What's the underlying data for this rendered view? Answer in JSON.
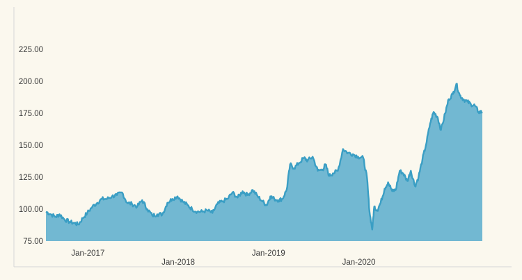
{
  "chart_data": {
    "type": "area",
    "title": "",
    "xlabel": "",
    "ylabel": "",
    "x_range": [
      "2016-08-01",
      "2021-05-31"
    ],
    "ylim": [
      75,
      250
    ],
    "y_ticks": [
      "75.00",
      "100.00",
      "125.00",
      "150.00",
      "175.00",
      "200.00",
      "225.00"
    ],
    "x_ticks": [
      {
        "date": "2017-01-01",
        "label": "Jan-2017"
      },
      {
        "date": "2018-01-01",
        "label": "Jan-2018"
      },
      {
        "date": "2019-01-01",
        "label": "Jan-2019"
      },
      {
        "date": "2020-01-01",
        "label": "Jan-2020"
      }
    ],
    "grid": false,
    "colors": {
      "fill": "#72b8d2",
      "line": "#3a9ec4",
      "axis": "#d6d6d6",
      "background": "#fbf8ee"
    },
    "series": [
      {
        "x": [
          "2016-08-01",
          "2016-08-20",
          "2016-09-10",
          "2016-09-25",
          "2016-10-15",
          "2016-11-05",
          "2016-11-25",
          "2016-12-10",
          "2016-12-28",
          "2017-01-15",
          "2017-02-05",
          "2017-02-25",
          "2017-03-15",
          "2017-04-05",
          "2017-04-25",
          "2017-05-15",
          "2017-06-05",
          "2017-06-25",
          "2017-07-15",
          "2017-08-05",
          "2017-08-25",
          "2017-09-15",
          "2017-10-05",
          "2017-10-25",
          "2017-11-15",
          "2017-12-05",
          "2017-12-25",
          "2018-01-15",
          "2018-02-05",
          "2018-02-25",
          "2018-03-15",
          "2018-04-05",
          "2018-04-25",
          "2018-05-15",
          "2018-06-05",
          "2018-06-25",
          "2018-07-15",
          "2018-08-05",
          "2018-08-25",
          "2018-09-15",
          "2018-10-05",
          "2018-10-25",
          "2018-11-15",
          "2018-12-05",
          "2018-12-25",
          "2019-01-10",
          "2019-01-25",
          "2019-02-10",
          "2019-02-28",
          "2019-03-15",
          "2019-04-01",
          "2019-04-15",
          "2019-05-01",
          "2019-05-20",
          "2019-06-10",
          "2019-06-25",
          "2019-07-15",
          "2019-08-05",
          "2019-08-25",
          "2019-09-05",
          "2019-09-20",
          "2019-10-05",
          "2019-10-25",
          "2019-11-15",
          "2019-12-05",
          "2019-12-25",
          "2020-01-15",
          "2020-02-05",
          "2020-02-20",
          "2020-03-01",
          "2020-03-12",
          "2020-03-20",
          "2020-04-01",
          "2020-04-15",
          "2020-05-01",
          "2020-05-15",
          "2020-06-01",
          "2020-06-15",
          "2020-07-01",
          "2020-07-15",
          "2020-08-01",
          "2020-08-15",
          "2020-09-01",
          "2020-09-15",
          "2020-10-01",
          "2020-10-15",
          "2020-11-01",
          "2020-11-15",
          "2020-12-01",
          "2020-12-15",
          "2021-01-01",
          "2021-01-15",
          "2021-02-01",
          "2021-02-15",
          "2021-03-01",
          "2021-03-15",
          "2021-04-01",
          "2021-04-15",
          "2021-05-01",
          "2021-05-15",
          "2021-05-31"
        ],
        "values": [
          98,
          96,
          94,
          96,
          92,
          90,
          89,
          88,
          93,
          97,
          102,
          105,
          108,
          108,
          110,
          111,
          113,
          105,
          104,
          102,
          107,
          100,
          95,
          96,
          96,
          105,
          108,
          110,
          106,
          103,
          100,
          98,
          98,
          99,
          97,
          104,
          106,
          108,
          113,
          109,
          114,
          111,
          115,
          110,
          106,
          103,
          110,
          108,
          107,
          108,
          115,
          135,
          132,
          136,
          140,
          138,
          141,
          130,
          131,
          135,
          126,
          128,
          130,
          147,
          144,
          143,
          141,
          140,
          124,
          98,
          84,
          102,
          99,
          105,
          116,
          121,
          114,
          115,
          130,
          128,
          122,
          130,
          118,
          125,
          139,
          150,
          167,
          176,
          172,
          162,
          175,
          186,
          190,
          198,
          189,
          186,
          184,
          182,
          181,
          176,
          176
        ]
      }
    ]
  }
}
